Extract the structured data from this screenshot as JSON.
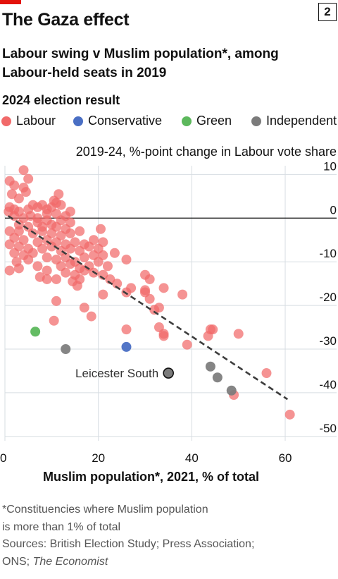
{
  "badge": "2",
  "title": "The Gaza effect",
  "subtitle": "Labour swing v Muslim population*, among Labour-held seats in 2019",
  "colors": {
    "labour": "#f16a6a",
    "conservative": "#4a6fc4",
    "green": "#5cb85c",
    "independent": "#7b7b7b",
    "accent": "#e3120b"
  },
  "chart_data": {
    "type": "scatter",
    "xlabel": "Muslim population*, 2021, % of total",
    "ylabel": "2019-24, %-point change in Labour vote share",
    "xlim": [
      0,
      71
    ],
    "ylim": [
      -51,
      12
    ],
    "x_ticks": [
      0,
      20,
      40,
      60
    ],
    "x_tick_labels": [
      "0",
      "20",
      "40",
      "60"
    ],
    "y_ticks": [
      10,
      0,
      -10,
      -20,
      -30,
      -40,
      -50
    ],
    "y_tick_labels": [
      "10",
      "0",
      "-10",
      "-20",
      "-30",
      "-40",
      "-50"
    ],
    "grid": true,
    "legend_title": "2024 election result",
    "legend": [
      {
        "key": "labour",
        "label": "Labour"
      },
      {
        "key": "conservative",
        "label": "Conservative"
      },
      {
        "key": "green",
        "label": "Green"
      },
      {
        "key": "independent",
        "label": "Independent"
      }
    ],
    "trendline": {
      "x": [
        0.7,
        60.5
      ],
      "y": [
        0.5,
        -41.5
      ]
    },
    "annotation": {
      "label": "Leicester South",
      "x": 35,
      "y": -35.5
    },
    "series": [
      {
        "key": "labour",
        "points": [
          [
            4,
            11
          ],
          [
            1,
            8.5
          ],
          [
            5,
            9
          ],
          [
            2,
            7.5
          ],
          [
            4,
            7
          ],
          [
            1.5,
            5.5
          ],
          [
            4.5,
            6
          ],
          [
            3,
            4.5
          ],
          [
            11.5,
            5.5
          ],
          [
            10.5,
            4
          ],
          [
            11,
            3.5
          ],
          [
            1,
            2.5
          ],
          [
            2,
            2
          ],
          [
            3,
            1.5
          ],
          [
            5,
            2
          ],
          [
            6,
            3
          ],
          [
            7,
            2.5
          ],
          [
            8,
            3
          ],
          [
            9,
            2
          ],
          [
            10,
            2.5
          ],
          [
            12,
            3
          ],
          [
            14,
            1.5
          ],
          [
            9,
            1
          ],
          [
            11,
            1
          ],
          [
            13,
            0.5
          ],
          [
            0.8,
            1.5
          ],
          [
            2,
            0.5
          ],
          [
            4,
            0
          ],
          [
            5.5,
            0.5
          ],
          [
            7,
            0
          ],
          [
            9,
            -0.5
          ],
          [
            12,
            -0.5
          ],
          [
            3,
            -1.5
          ],
          [
            5,
            -2
          ],
          [
            7,
            -1
          ],
          [
            8,
            -2
          ],
          [
            10,
            -1.5
          ],
          [
            11,
            -2
          ],
          [
            13,
            -2.5
          ],
          [
            14,
            -1
          ],
          [
            1,
            -3
          ],
          [
            3,
            -3
          ],
          [
            6,
            -3.5
          ],
          [
            8,
            -3
          ],
          [
            10,
            -3.5
          ],
          [
            12,
            -4
          ],
          [
            14,
            -3.5
          ],
          [
            16,
            -3
          ],
          [
            20.5,
            -2.5
          ],
          [
            2,
            -4.5
          ],
          [
            4,
            -5
          ],
          [
            7,
            -5.5
          ],
          [
            9,
            -5
          ],
          [
            11,
            -5.5
          ],
          [
            13,
            -6
          ],
          [
            15,
            -5.5
          ],
          [
            17,
            -6
          ],
          [
            19,
            -5
          ],
          [
            21,
            -5.5
          ],
          [
            1,
            -6
          ],
          [
            3,
            -6.5
          ],
          [
            5,
            -7
          ],
          [
            8,
            -7
          ],
          [
            10,
            -6.5
          ],
          [
            12,
            -7.5
          ],
          [
            14,
            -7
          ],
          [
            16,
            -7.5
          ],
          [
            18,
            -6.5
          ],
          [
            20,
            -7
          ],
          [
            2,
            -8
          ],
          [
            4,
            -8.5
          ],
          [
            6,
            -8
          ],
          [
            9,
            -9
          ],
          [
            11,
            -9.5
          ],
          [
            13,
            -9
          ],
          [
            15,
            -10
          ],
          [
            17,
            -9
          ],
          [
            19,
            -8.5
          ],
          [
            21,
            -8.5
          ],
          [
            23.5,
            -8
          ],
          [
            26,
            -9.5
          ],
          [
            2.5,
            -10
          ],
          [
            5,
            -9.5
          ],
          [
            7,
            -11
          ],
          [
            12,
            -11
          ],
          [
            14,
            -10.5
          ],
          [
            16,
            -11.5
          ],
          [
            18,
            -11
          ],
          [
            20,
            -10
          ],
          [
            22,
            -11
          ],
          [
            1,
            -12
          ],
          [
            3,
            -11.5
          ],
          [
            9,
            -12
          ],
          [
            13,
            -12.5
          ],
          [
            15,
            -13
          ],
          [
            17,
            -12
          ],
          [
            19,
            -12.5
          ],
          [
            21,
            -13
          ],
          [
            7.5,
            -13.5
          ],
          [
            11,
            -14
          ],
          [
            14.5,
            -14.5
          ],
          [
            16,
            -14
          ],
          [
            22.5,
            -14
          ],
          [
            24,
            -15
          ],
          [
            27,
            -16
          ],
          [
            15.5,
            -15.5
          ],
          [
            9,
            -14
          ],
          [
            30,
            -13
          ],
          [
            31,
            -14
          ],
          [
            34,
            -16
          ],
          [
            38,
            -17.5
          ],
          [
            21,
            -17.5
          ],
          [
            26,
            -17
          ],
          [
            30,
            -17
          ],
          [
            30,
            -16.5
          ],
          [
            31,
            -18.5
          ],
          [
            11,
            -19
          ],
          [
            17,
            -20.5
          ],
          [
            32,
            -21
          ],
          [
            33,
            -20.5
          ],
          [
            18.5,
            -22.5
          ],
          [
            10.5,
            -23.5
          ],
          [
            33,
            -25
          ],
          [
            26,
            -25.5
          ],
          [
            34,
            -26.5
          ],
          [
            34,
            -27
          ],
          [
            44,
            -25.5
          ],
          [
            44.5,
            -25.5
          ],
          [
            50,
            -26.5
          ],
          [
            43.5,
            -27
          ],
          [
            39,
            -29
          ],
          [
            56,
            -35.5
          ],
          [
            49,
            -40.5
          ],
          [
            61,
            -45
          ]
        ]
      },
      {
        "key": "conservative",
        "points": [
          [
            26,
            -29.5
          ]
        ]
      },
      {
        "key": "green",
        "points": [
          [
            6.5,
            -26
          ]
        ]
      },
      {
        "key": "independent",
        "points": [
          [
            13,
            -30
          ],
          [
            44,
            -34
          ],
          [
            45.5,
            -36.5
          ],
          [
            48.5,
            -39.5
          ],
          [
            35,
            -35.5
          ]
        ]
      }
    ]
  },
  "footnote": {
    "lines": [
      "*Constituencies where Muslim population",
      "is more than 1% of total",
      "Sources: British Election Study; Press Association;"
    ],
    "last_prefix": "ONS; ",
    "last_italic": "The Economist"
  }
}
